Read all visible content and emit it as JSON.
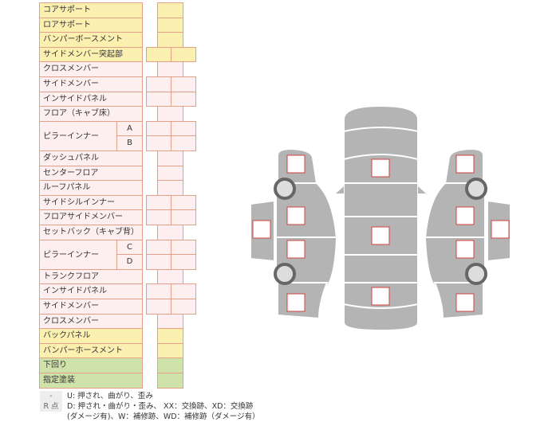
{
  "rows": [
    {
      "label": "コアサポート",
      "color": "yellow",
      "cells": "single"
    },
    {
      "label": "ロアサポート",
      "color": "yellow",
      "cells": "single"
    },
    {
      "label": "バンパーボースメント",
      "color": "yellow",
      "cells": "single"
    },
    {
      "label": "サイドメンバー突起部",
      "color": "yellow",
      "cells": "double"
    },
    {
      "label": "クロスメンバー",
      "color": "pink",
      "cells": "single"
    },
    {
      "label": "サイドメンバー",
      "color": "pink",
      "cells": "double"
    },
    {
      "label": "インサイドパネル",
      "color": "pink",
      "cells": "double"
    },
    {
      "label": "フロア（キャブ床）",
      "color": "pink",
      "cells": "single"
    },
    {
      "label": "ピラーインナー",
      "sub": [
        "A",
        "B"
      ],
      "color": "pink",
      "cells": "double"
    },
    {
      "label": "ダッシュパネル",
      "color": "pink",
      "cells": "single"
    },
    {
      "label": "センターフロア",
      "color": "pink",
      "cells": "single"
    },
    {
      "label": "ルーフパネル",
      "color": "pink",
      "cells": "single"
    },
    {
      "label": "サイドシルインナー",
      "color": "pink",
      "cells": "double"
    },
    {
      "label": "フロアサイドメンバー",
      "color": "pink",
      "cells": "double"
    },
    {
      "label": "セットバック（キャブ背）",
      "color": "pink",
      "cells": "single"
    },
    {
      "label": "ピラーインナー",
      "sub": [
        "C",
        "D"
      ],
      "color": "pink",
      "cells": "double"
    },
    {
      "label": "トランクフロア",
      "color": "pink",
      "cells": "single"
    },
    {
      "label": "インサイドパネル",
      "color": "pink",
      "cells": "double"
    },
    {
      "label": "サイドメンバー",
      "color": "pink",
      "cells": "double"
    },
    {
      "label": "クロスメンバー",
      "color": "pink",
      "cells": "single"
    },
    {
      "label": "バックパネル",
      "color": "yellow",
      "cells": "single"
    },
    {
      "label": "バンパーホースメント",
      "color": "yellow",
      "cells": "single"
    },
    {
      "label": "下回り",
      "color": "green",
      "cells": "single"
    },
    {
      "label": "指定塗装",
      "color": "green",
      "cells": "single"
    }
  ],
  "legend": [
    {
      "key": "-",
      "text": "U: 押され、曲がり、歪み"
    },
    {
      "key": "R 点",
      "text": "D: 押され・曲がり・歪み、 XX：交換跡、XD：交換跡"
    },
    {
      "key": "",
      "text": "(ダメージ有)、W：補修跡、WD：補修跡（ダメージ有）"
    }
  ],
  "colors": {
    "yellow": "#fcf0b0",
    "pink": "#fdeef0",
    "green": "#cfe2aa",
    "border": "#e3a088",
    "car": "#b4b4b4",
    "marker": "#d04040"
  }
}
